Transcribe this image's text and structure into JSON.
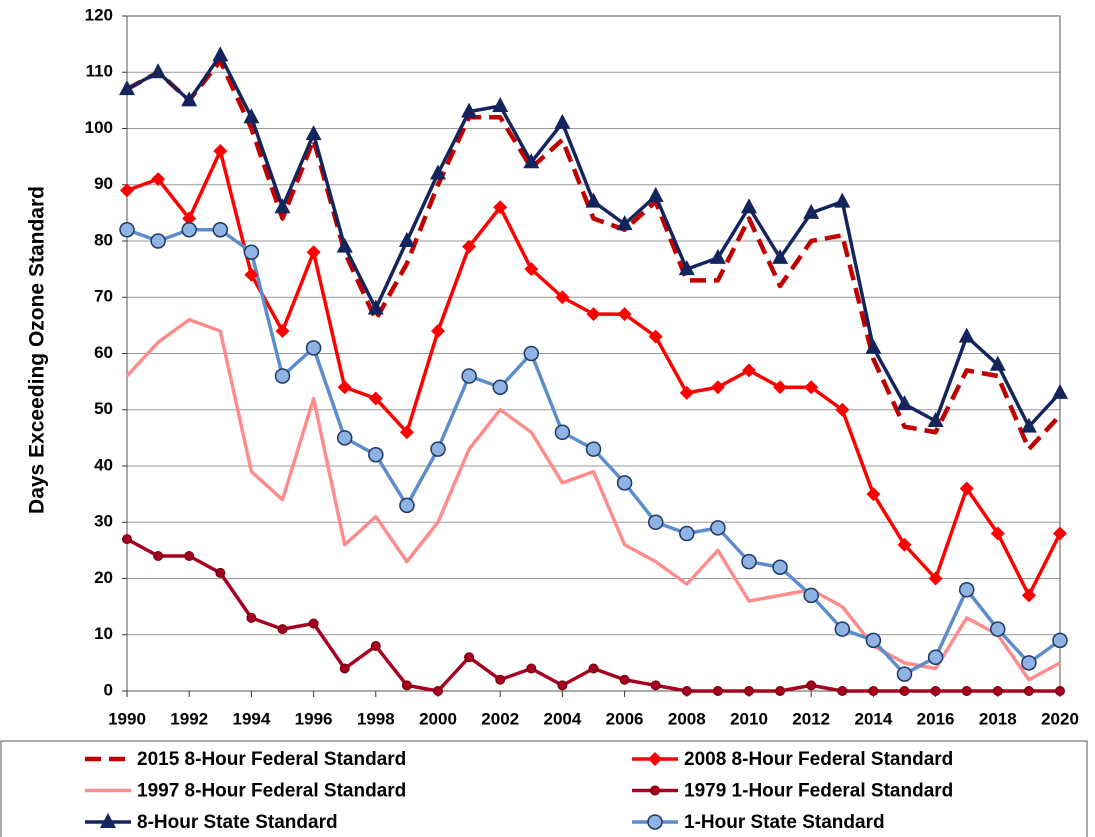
{
  "chart_data": {
    "type": "line",
    "y_label": "Days Exceeding Ozone Standard",
    "x": [
      1990,
      1991,
      1992,
      1993,
      1994,
      1995,
      1996,
      1997,
      1998,
      1999,
      2000,
      2001,
      2002,
      2003,
      2004,
      2005,
      2006,
      2007,
      2008,
      2009,
      2010,
      2011,
      2012,
      2013,
      2014,
      2015,
      2016,
      2017,
      2018,
      2019,
      2020
    ],
    "xlim": [
      1990,
      2020
    ],
    "xticks": [
      1990,
      1992,
      1994,
      1996,
      1998,
      2000,
      2002,
      2004,
      2006,
      2008,
      2010,
      2012,
      2014,
      2016,
      2018,
      2020
    ],
    "ylim": [
      0,
      120
    ],
    "yticks": [
      0,
      10,
      20,
      30,
      40,
      50,
      60,
      70,
      80,
      90,
      100,
      110,
      120
    ],
    "grid": true,
    "legend": "bottom",
    "series": [
      {
        "name": "2015 8-Hour Federal Standard",
        "color": "#c00000",
        "dashed": true,
        "marker": "none",
        "values": [
          107,
          110,
          105,
          112,
          100,
          84,
          98,
          78,
          66,
          76,
          90,
          102,
          102,
          93,
          98,
          84,
          82,
          87,
          73,
          73,
          84,
          72,
          80,
          81,
          59,
          47,
          46,
          57,
          56,
          43,
          49
        ]
      },
      {
        "name": "2008 8-Hour Federal Standard",
        "color": "#ff0000",
        "dashed": false,
        "marker": "diamond",
        "values": [
          89,
          91,
          84,
          96,
          74,
          64,
          78,
          54,
          52,
          46,
          64,
          79,
          86,
          75,
          70,
          67,
          67,
          63,
          53,
          54,
          57,
          54,
          54,
          50,
          35,
          26,
          20,
          36,
          28,
          17,
          28
        ]
      },
      {
        "name": "1997 8-Hour Federal Standard",
        "color": "#ff8c8c",
        "dashed": false,
        "marker": "none",
        "values": [
          56,
          62,
          66,
          64,
          39,
          34,
          52,
          26,
          31,
          23,
          30,
          43,
          50,
          46,
          37,
          39,
          26,
          23,
          19,
          25,
          16,
          17,
          18,
          15,
          8,
          5,
          4,
          13,
          10,
          2,
          5
        ]
      },
      {
        "name": "1979 1-Hour Federal Standard",
        "color": "#a50021",
        "dashed": false,
        "marker": "dot",
        "values": [
          27,
          24,
          24,
          21,
          13,
          11,
          12,
          4,
          8,
          1,
          0,
          6,
          2,
          4,
          1,
          4,
          2,
          1,
          0,
          0,
          0,
          0,
          1,
          0,
          0,
          0,
          0,
          0,
          0,
          0,
          0
        ]
      },
      {
        "name": "8-Hour State Standard",
        "color": "#14245c",
        "dashed": false,
        "marker": "triangle",
        "values": [
          107,
          110,
          105,
          113,
          102,
          86,
          99,
          79,
          68,
          80,
          92,
          103,
          104,
          94,
          101,
          87,
          83,
          88,
          75,
          77,
          86,
          77,
          85,
          87,
          61,
          51,
          48,
          63,
          58,
          47,
          53
        ]
      },
      {
        "name": "1-Hour State Standard",
        "color": "#5b8ccc",
        "dashed": false,
        "marker": "circle",
        "values": [
          82,
          80,
          82,
          82,
          78,
          56,
          61,
          45,
          42,
          33,
          43,
          56,
          54,
          60,
          46,
          43,
          37,
          30,
          28,
          29,
          23,
          22,
          17,
          11,
          9,
          3,
          6,
          18,
          11,
          5,
          9
        ]
      }
    ]
  }
}
